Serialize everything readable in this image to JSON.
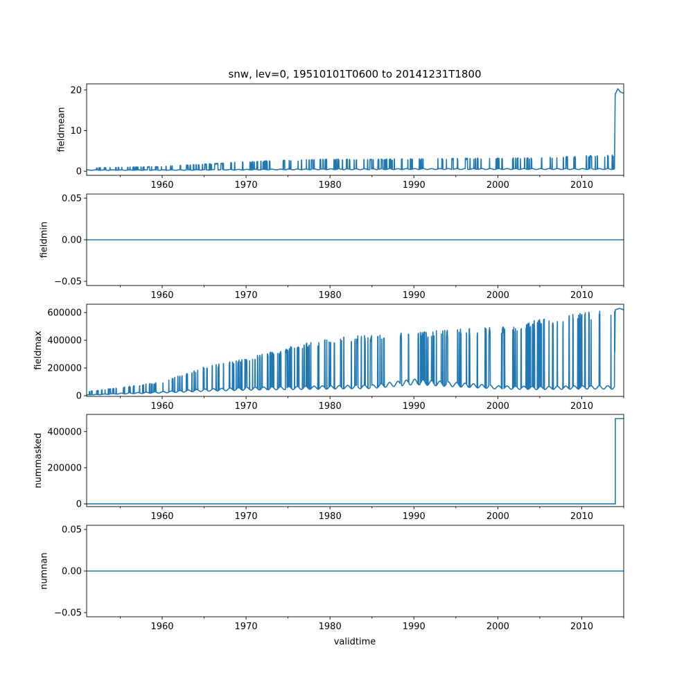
{
  "figure": {
    "title": "snw, lev=0, 19510101T0600 to 20141231T1800",
    "xlabel": "validtime"
  },
  "chart_data": [
    {
      "type": "line",
      "ylabel": "fieldmean",
      "xlim": [
        1951.0,
        2015.0
      ],
      "ylim": [
        -1.0,
        21.5
      ],
      "yticks": [
        0,
        10,
        20
      ],
      "ytick_labels": [
        "0",
        "10",
        "20"
      ],
      "xticks": [
        1960,
        1970,
        1980,
        1990,
        2000,
        2010
      ],
      "xtick_labels": [
        "1960",
        "1970",
        "1980",
        "1990",
        "2000",
        "2010"
      ],
      "series": [
        {
          "color": "#1f77b4",
          "x": [
            1951.0,
            1955,
            1960,
            1965,
            1970,
            1975,
            1980,
            1985,
            1990,
            1995,
            2000,
            2005,
            2010,
            2013.9,
            2014.0,
            2014.3,
            2014.6,
            2015.0
          ],
          "y": [
            0.3,
            0.3,
            0.3,
            0.35,
            0.4,
            0.45,
            0.5,
            0.5,
            0.55,
            0.55,
            0.55,
            0.55,
            0.55,
            0.55,
            19.0,
            20.3,
            19.5,
            19.2
          ],
          "y_peak": [
            0.8,
            1.0,
            1.2,
            1.8,
            2.4,
            2.8,
            3.0,
            3.0,
            3.1,
            3.2,
            3.3,
            3.3,
            3.8,
            4.0,
            19.0,
            20.3,
            19.5,
            19.2
          ]
        }
      ]
    },
    {
      "type": "line",
      "ylabel": "fieldmin",
      "xlim": [
        1951.0,
        2015.0
      ],
      "ylim": [
        -0.055,
        0.055
      ],
      "yticks": [
        -0.05,
        0.0,
        0.05
      ],
      "ytick_labels": [
        "−0.05",
        "0.00",
        "0.05"
      ],
      "xticks": [
        1960,
        1970,
        1980,
        1990,
        2000,
        2010
      ],
      "xtick_labels": [
        "1960",
        "1970",
        "1980",
        "1990",
        "2000",
        "2010"
      ],
      "series": [
        {
          "color": "#1f77b4",
          "x": [
            1951.0,
            2015.0
          ],
          "y": [
            0.0,
            0.0
          ]
        }
      ]
    },
    {
      "type": "line",
      "ylabel": "fieldmax",
      "xlim": [
        1951.0,
        2015.0
      ],
      "ylim": [
        -5000,
        660000
      ],
      "yticks": [
        0,
        200000,
        400000,
        600000
      ],
      "ytick_labels": [
        "0",
        "200000",
        "400000",
        "600000"
      ],
      "xticks": [
        1960,
        1970,
        1980,
        1990,
        2000,
        2010
      ],
      "xtick_labels": [
        "1960",
        "1970",
        "1980",
        "1990",
        "2000",
        "2010"
      ],
      "series": [
        {
          "color": "#1f77b4",
          "x": [
            1951.0,
            1955,
            1960,
            1965,
            1970,
            1975,
            1980,
            1985,
            1990,
            1995,
            2000,
            2005,
            2010,
            2013.9,
            2014.0,
            2014.5,
            2015.0
          ],
          "y": [
            5000,
            15000,
            25000,
            40000,
            50000,
            55000,
            60000,
            65000,
            100000,
            80000,
            60000,
            55000,
            60000,
            60000,
            620000,
            630000,
            620000
          ],
          "y_peak": [
            30000,
            60000,
            100000,
            210000,
            270000,
            350000,
            420000,
            440000,
            460000,
            480000,
            500000,
            550000,
            600000,
            620000,
            620000,
            630000,
            620000
          ]
        }
      ]
    },
    {
      "type": "line",
      "ylabel": "nummasked",
      "xlim": [
        1951.0,
        2015.0
      ],
      "ylim": [
        -15000,
        495000
      ],
      "yticks": [
        0,
        200000,
        400000
      ],
      "ytick_labels": [
        "0",
        "200000",
        "400000"
      ],
      "xticks": [
        1960,
        1970,
        1980,
        1990,
        2000,
        2010
      ],
      "xtick_labels": [
        "1960",
        "1970",
        "1980",
        "1990",
        "2000",
        "2010"
      ],
      "series": [
        {
          "color": "#1f77b4",
          "x": [
            1951.0,
            2014.0,
            2014.0,
            2015.0
          ],
          "y": [
            0,
            0,
            472000,
            472000
          ]
        }
      ]
    },
    {
      "type": "line",
      "ylabel": "numnan",
      "xlim": [
        1951.0,
        2015.0
      ],
      "ylim": [
        -0.055,
        0.055
      ],
      "yticks": [
        -0.05,
        0.0,
        0.05
      ],
      "ytick_labels": [
        "−0.05",
        "0.00",
        "0.05"
      ],
      "xticks": [
        1960,
        1970,
        1980,
        1990,
        2000,
        2010
      ],
      "xtick_labels": [
        "1960",
        "1970",
        "1980",
        "1990",
        "2000",
        "2010"
      ],
      "series": [
        {
          "color": "#1f77b4",
          "x": [
            1951.0,
            2015.0
          ],
          "y": [
            0.0,
            0.0
          ]
        }
      ]
    }
  ]
}
